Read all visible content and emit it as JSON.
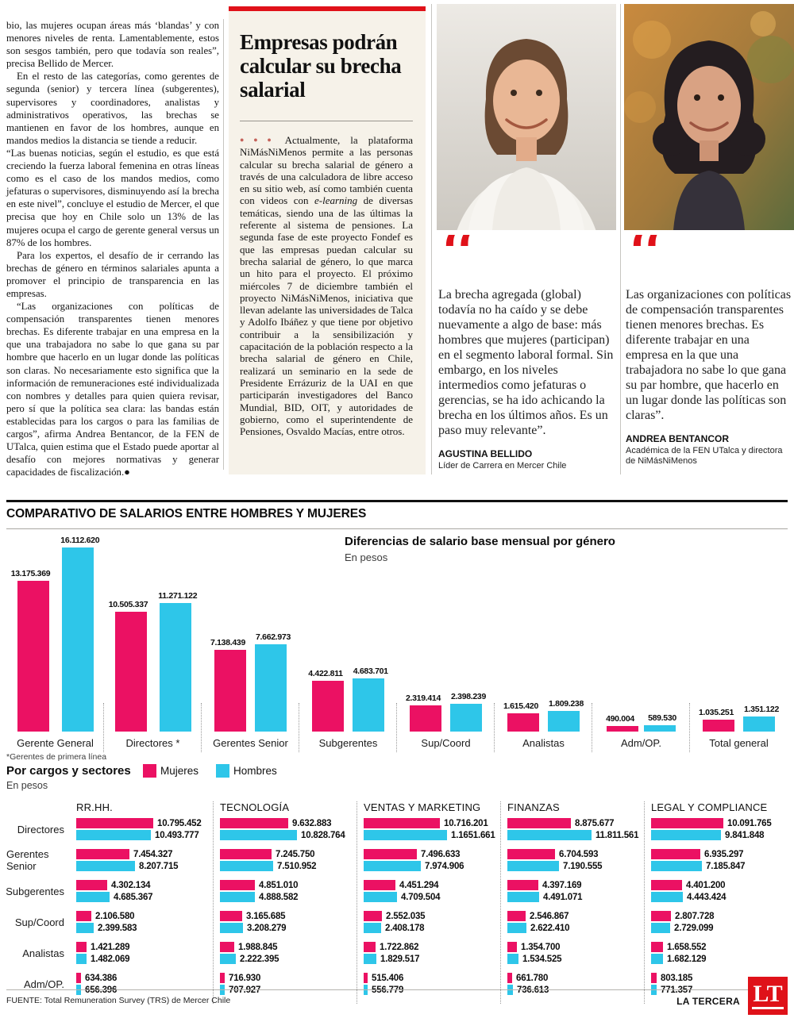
{
  "article": {
    "left_column": {
      "paragraphs": [
        "bio, las mujeres ocupan áreas más ‘blandas’ y con menores niveles de renta. Lamentablemente, estos son sesgos también, pero que todavía son reales”, precisa Bellido de Mercer.",
        "En el resto de las categorías, como gerentes de segunda (senior) y tercera línea (subgerentes), supervisores y coordinadores, analistas y administrativos operativos, las brechas se mantienen en favor de los hombres, aunque en mandos medios la distancia se tiende a reducir.",
        "“Las buenas noticias, según el estudio, es que está creciendo la fuerza laboral femenina en otras líneas como es el caso de los mandos medios, como jefaturas o supervisores, disminuyendo así la brecha en este nivel”, concluye el estudio de Mercer, el que precisa que hoy en Chile solo un 13% de las mujeres ocupa el cargo de gerente general versus un 87% de los hombres.",
        "Para los expertos, el desafío de ir cerrando las brechas de género en términos salariales apunta a promover el principio de transparencia en las empresas.",
        "“Las organizaciones con políticas de compensación transparentes tienen menores brechas. Es diferente trabajar en una empresa en la que una trabajadora no sabe lo que gana su par hombre que hacerlo en un lugar donde las políticas son claras. No necesariamente esto significa que la información de remuneraciones esté individualizada con nombres y detalles para quien quiera revisar, pero sí que la política sea clara: las bandas están establecidas para los cargos o para las familias de cargos”, afirma Andrea Bentancor, de la FEN de UTalca, quien estima que el Estado puede aportar al desafío con mejores normativas y generar capacidades de fiscalización.●"
      ]
    },
    "feature": {
      "headline": "Empresas podrán calcular su brecha salarial",
      "lede_bullets": "●●●",
      "body_1": "Actualmente, la plataforma NiMásNiMenos permite a las personas calcular su brecha salarial de género a través de una calculadora de libre acceso en su sitio web, así como también cuenta con videos con ",
      "body_italic": "e-learning",
      "body_2": " de diversas temáticas, siendo una de las últimas la referente al sistema de pensiones. La segunda fase de este proyecto Fondef es que las empresas puedan calcular su brecha salarial de género, lo que marca un hito para el proyecto. El próximo miércoles 7 de diciembre también el proyecto NiMásNiMenos, iniciativa que llevan adelante las universidades de Talca y Adolfo Ibáñez y que tiene por objetivo contribuir a la sensibilización y capacitación de la población respecto a la brecha salarial de género en Chile, realizará un seminario en la sede de Presidente Errázuriz de la UAI en que participarán investigadores del Banco Mundial, BID, OIT, y autoridades de gobierno, como el superintendente de Pensiones, Osvaldo Macías, entre otros."
    },
    "quotes": [
      {
        "text": "La brecha agregada (global) todavía no ha caído y se debe nuevamente a algo de base: más hombres que mujeres (participan) en el segmento laboral formal. Sin embargo, en los niveles intermedios como jefaturas o gerencias, se ha ido achicando la brecha en los últimos años. Es un paso muy relevante”.",
        "author": "AGUSTINA BELLIDO",
        "role": "Líder de Carrera en Mercer Chile"
      },
      {
        "text": "Las organizaciones con políticas de compensación transparentes tienen menores brechas. Es diferente trabajar en una empresa en la que una trabajadora no sabe lo que gana su par hombre, que hacerlo en un lugar donde las políticas son claras”.",
        "author": "ANDREA BENTANCOR",
        "role": "Académica de la FEN UTalca y directora de NiMásNiMenos"
      }
    ]
  },
  "infographic": {
    "header": "COMPARATIVO DE SALARIOS ENTRE HOMBRES Y MUJERES",
    "bottom": {
      "title": "Por cargos y sectores",
      "subtitle": "En pesos"
    }
  },
  "chart_data": [
    {
      "type": "bar",
      "title": "Diferencias de salario base mensual por género",
      "subtitle": "En pesos",
      "footnote": "*Gerentes de primera línea",
      "categories": [
        "Gerente General",
        "Directores *",
        "Gerentes Senior",
        "Subgerentes",
        "Sup/Coord",
        "Analistas",
        "Adm/OP.",
        "Total general"
      ],
      "series": [
        {
          "name": "Mujeres",
          "labels": [
            "13.175.369",
            "10.505.337",
            "7.138.439",
            "4.422.811",
            "2.319.414",
            "1.615.420",
            "490.004",
            "1.035.251"
          ],
          "values": [
            13175369,
            10505337,
            7138439,
            4422811,
            2319414,
            1615420,
            490004,
            1035251
          ]
        },
        {
          "name": "Hombres",
          "labels": [
            "16.112.620",
            "11.271.122",
            "7.662.973",
            "4.683.701",
            "2.398.239",
            "1.809.238",
            "589.530",
            "1.351.122"
          ],
          "values": [
            16112620,
            11271122,
            7662973,
            4683701,
            2398239,
            1809238,
            589530,
            1351122
          ]
        }
      ],
      "legend_position": "none",
      "grid": false
    },
    {
      "type": "bar",
      "orientation": "horizontal",
      "title": "Por cargos y sectores",
      "subtitle": "En pesos",
      "legend": [
        "Mujeres",
        "Hombres"
      ],
      "row_categories": [
        "Directores",
        "Gerentes Senior",
        "Subgerentes",
        "Sup/Coord",
        "Analistas",
        "Adm/OP."
      ],
      "sectors": [
        {
          "name": "RR.HH.",
          "rows": [
            [
              "10.795.452",
              "10.493.777"
            ],
            [
              "7.454.327",
              "8.207.715"
            ],
            [
              "4.302.134",
              "4.685.367"
            ],
            [
              "2.106.580",
              "2.399.583"
            ],
            [
              "1.421.289",
              "1.482.069"
            ],
            [
              "634.386",
              "656.396"
            ]
          ]
        },
        {
          "name": "TECNOLOGÍA",
          "rows": [
            [
              "9.632.883",
              "10.828.764"
            ],
            [
              "7.245.750",
              "7.510.952"
            ],
            [
              "4.851.010",
              "4.888.582"
            ],
            [
              "3.165.685",
              "3.208.279"
            ],
            [
              "1.988.845",
              "2.222.395"
            ],
            [
              "716.930",
              "707.927"
            ]
          ]
        },
        {
          "name": "VENTAS Y MARKETING",
          "rows": [
            [
              "10.716.201",
              "1.1651.661"
            ],
            [
              "7.496.633",
              "7.974.906"
            ],
            [
              "4.451.294",
              "4.709.504"
            ],
            [
              "2.552.035",
              "2.408.178"
            ],
            [
              "1.722.862",
              "1.829.517"
            ],
            [
              "515.406",
              "556.779"
            ]
          ]
        },
        {
          "name": "FINANZAS",
          "rows": [
            [
              "8.875.677",
              "11.811.561"
            ],
            [
              "6.704.593",
              "7.190.555"
            ],
            [
              "4.397.169",
              "4.491.071"
            ],
            [
              "2.546.867",
              "2.622.410"
            ],
            [
              "1.354.700",
              "1.534.525"
            ],
            [
              "661.780",
              "736.613"
            ]
          ]
        },
        {
          "name": "LEGAL Y COMPLIANCE",
          "rows": [
            [
              "10.091.765",
              "9.841.848"
            ],
            [
              "6.935.297",
              "7.185.847"
            ],
            [
              "4.401.200",
              "4.443.424"
            ],
            [
              "2.807.728",
              "2.729.099"
            ],
            [
              "1.658.552",
              "1.682.129"
            ],
            [
              "803.185",
              "771.357"
            ]
          ]
        }
      ]
    }
  ],
  "footer": {
    "source": "FUENTE: Total Remuneration Survey (TRS) de Mercer Chile",
    "brand": "LA TERCERA",
    "logo": "LT"
  },
  "colors": {
    "mujeres": "#EB1163",
    "hombres": "#2EC6E9",
    "accent_red": "#E01119"
  }
}
